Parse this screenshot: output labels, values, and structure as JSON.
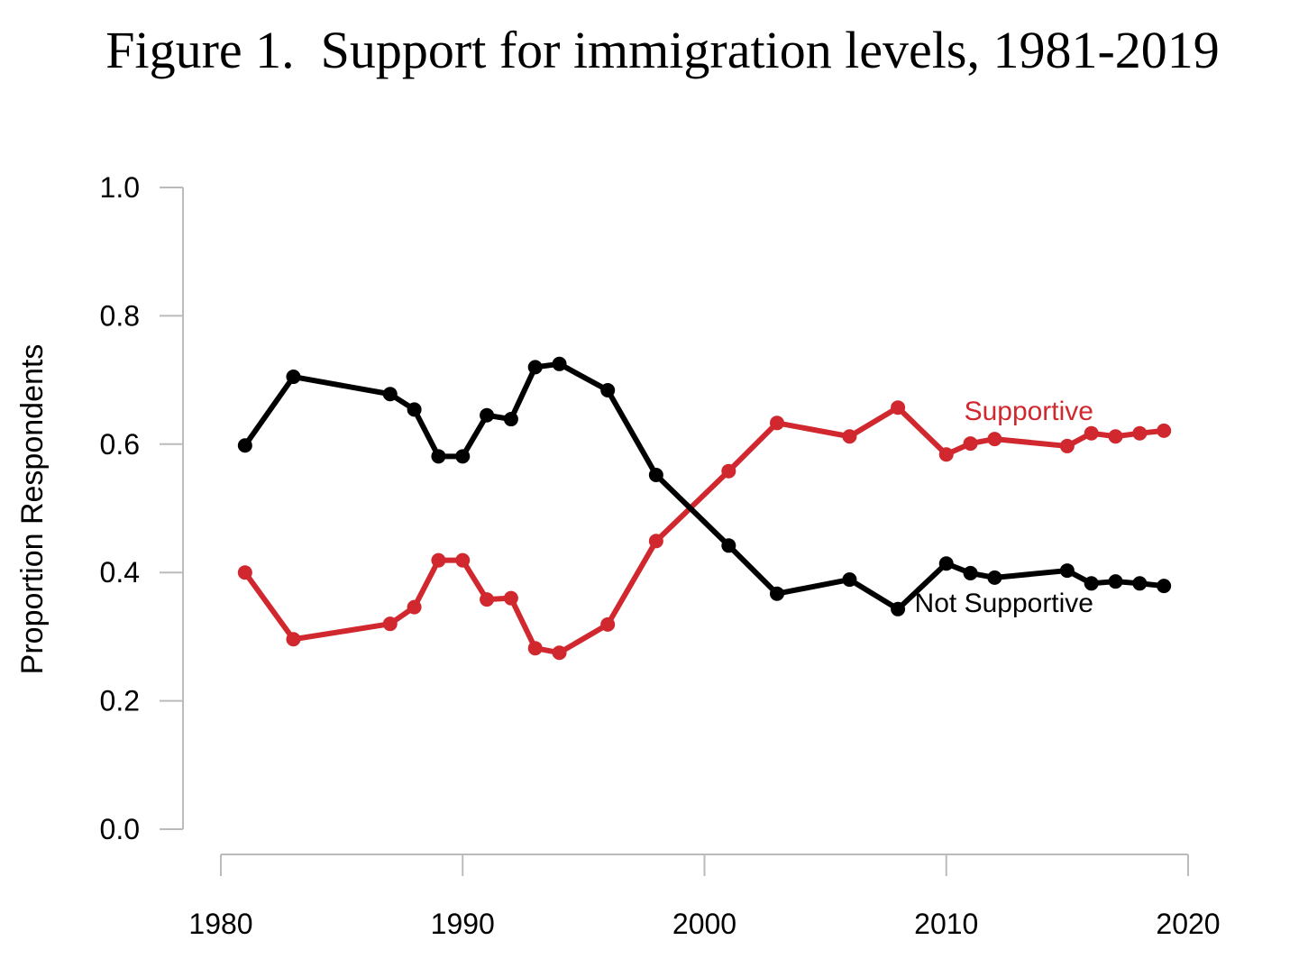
{
  "chart_data": {
    "type": "line",
    "title": "Figure 1.  Support for immigration levels, 1981-2019",
    "xlabel": "",
    "ylabel": "Proportion Respondents",
    "xlim": [
      1980,
      2020
    ],
    "ylim": [
      0,
      1
    ],
    "xticks": [
      "1980",
      "1990",
      "2000",
      "2010",
      "2020"
    ],
    "yticks": [
      "0.0",
      "0.2",
      "0.4",
      "0.6",
      "0.8",
      "1.0"
    ],
    "grid": false,
    "legend": "direct labels",
    "x": [
      1981,
      1983,
      1987,
      1988,
      1989,
      1990,
      1991,
      1992,
      1993,
      1994,
      1996,
      1998,
      2001,
      2003,
      2006,
      2008,
      2010,
      2011,
      2012,
      2015,
      2016,
      2017,
      2018,
      2019
    ],
    "series": [
      {
        "name": "Supportive",
        "color": "#d0282e",
        "values": [
          0.4,
          0.296,
          0.32,
          0.346,
          0.419,
          0.419,
          0.358,
          0.36,
          0.282,
          0.275,
          0.319,
          0.449,
          0.558,
          0.633,
          0.612,
          0.657,
          0.584,
          0.601,
          0.608,
          0.597,
          0.617,
          0.612,
          0.617,
          0.621
        ]
      },
      {
        "name": "Not Supportive",
        "color": "#000000",
        "values": [
          0.598,
          0.705,
          0.678,
          0.654,
          0.581,
          0.581,
          0.645,
          0.639,
          0.72,
          0.725,
          0.684,
          0.552,
          0.442,
          0.367,
          0.389,
          0.343,
          0.414,
          0.399,
          0.392,
          0.403,
          0.383,
          0.386,
          0.383,
          0.379
        ]
      }
    ]
  }
}
